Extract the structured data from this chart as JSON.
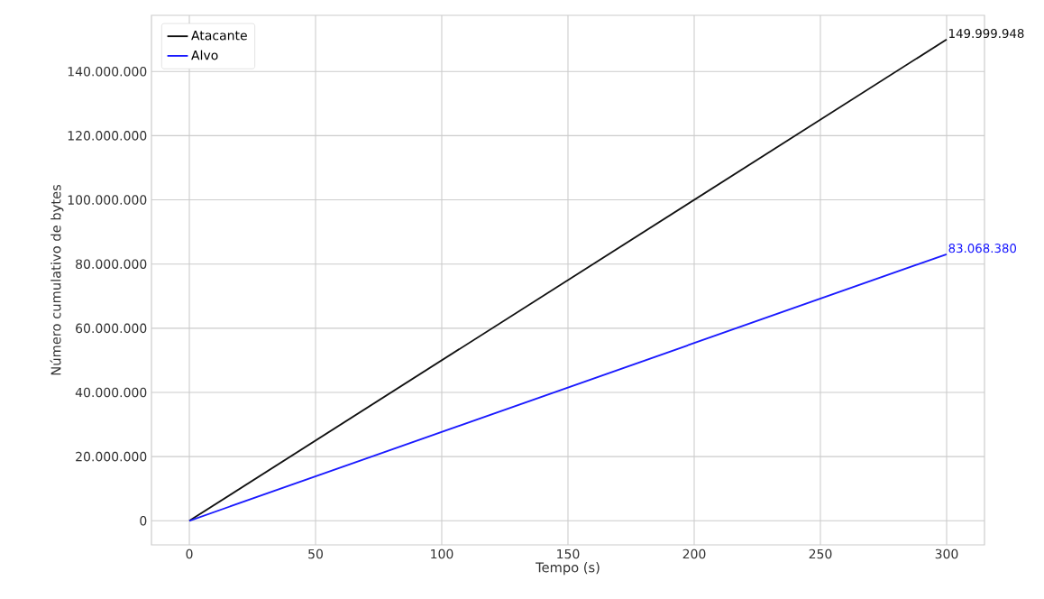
{
  "chart_data": {
    "type": "line",
    "xlabel": "Tempo (s)",
    "ylabel": "Número cumulativo de bytes",
    "x": [
      0,
      300
    ],
    "series": [
      {
        "name": "Atacante",
        "color": "#111111",
        "values": [
          0,
          149999948
        ],
        "value_labels": [
          null,
          "149.999.948"
        ]
      },
      {
        "name": "Alvo",
        "color": "#1a1aff",
        "values": [
          0,
          83068380
        ],
        "value_labels": [
          null,
          "83.068.380"
        ]
      }
    ],
    "xlim": [
      -15,
      315
    ],
    "xticks": [
      0,
      50,
      100,
      150,
      200,
      250,
      300
    ],
    "ylim": [
      -7500000,
      157500000
    ],
    "yticks": [
      0,
      {
        "value": 20000000,
        "label": "20.000.000"
      },
      {
        "value": 40000000,
        "label": "40.000.000"
      },
      {
        "value": 60000000,
        "label": "60.000.000"
      },
      {
        "value": 80000000,
        "label": "80.000.000"
      },
      {
        "value": 100000000,
        "label": "100.000.000"
      },
      {
        "value": 120000000,
        "label": "120.000.000"
      },
      {
        "value": 140000000,
        "label": "140.000.000"
      }
    ],
    "grid": true,
    "legend": "top left",
    "marker": "none",
    "line_style": "solid"
  }
}
